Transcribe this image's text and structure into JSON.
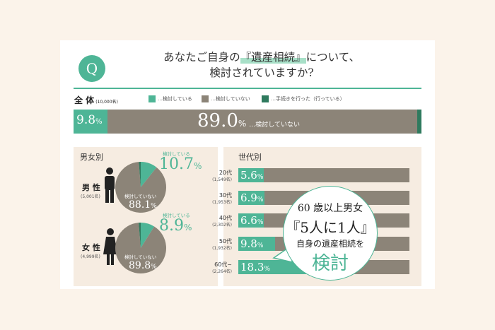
{
  "header": {
    "badge": "Q",
    "title_line1_pre": "あなたご自身の",
    "title_line1_hl": "『遺産相続』",
    "title_line1_post": "について、",
    "title_line2": "検討されていますか?"
  },
  "overall": {
    "label": "全 体",
    "count": "(10,000名)",
    "bar_label_1": "9.8",
    "bar_label_2": "89.0",
    "pct_unit": "%",
    "bar_note": "…検討していない"
  },
  "legend": [
    {
      "label": "…検討している",
      "color": "#4eb596"
    },
    {
      "label": "…検討していない",
      "color": "#8c8478"
    },
    {
      "label": "…手続きを行った（行っている）",
      "color": "#2f7a5e"
    }
  ],
  "gender": {
    "section_title": "男女別",
    "kentou_label": "検討している",
    "not_label": "検討していない",
    "items": [
      {
        "name": "男 性",
        "count": "(5,001名)",
        "kentou": "10.7",
        "not": "88.1",
        "pct": "%"
      },
      {
        "name": "女 性",
        "count": "(4,999名)",
        "kentou": "8.9",
        "not": "89.8",
        "pct": "%"
      }
    ]
  },
  "age": {
    "section_title": "世代別",
    "items": [
      {
        "label": "20代",
        "count": "(1,549名)",
        "value": "5.6",
        "pct": "%"
      },
      {
        "label": "30代",
        "count": "(1,953名)",
        "value": "6.9",
        "pct": "%"
      },
      {
        "label": "40代",
        "count": "(2,302名)",
        "value": "6.6",
        "pct": "%"
      },
      {
        "label": "50代",
        "count": "(1,932名)",
        "value": "9.8",
        "pct": "%"
      },
      {
        "label": "60代~",
        "count": "(2,264名)",
        "value": "18.3",
        "pct": "%"
      }
    ]
  },
  "callout": {
    "line1": "60 歳以上男女",
    "line2": "『5人に1人』",
    "line3": "自身の遺産相続を",
    "line4": "検討"
  },
  "colors": {
    "accent": "#4eb596",
    "grey": "#8c8478",
    "dark": "#2f7a5e"
  },
  "chart_data": [
    {
      "type": "bar",
      "categories": [
        "全体"
      ],
      "series": [
        {
          "name": "検討している",
          "values": [
            9.8
          ]
        },
        {
          "name": "検討していない",
          "values": [
            89.0
          ]
        },
        {
          "name": "手続きを行った（行っている）",
          "values": [
            1.2
          ]
        }
      ]
    },
    {
      "type": "pie",
      "categories": [
        "検討している",
        "検討していない",
        "手続きを行った（行っている）"
      ],
      "values": [
        10.7,
        88.1,
        1.2
      ],
      "series_label": "男性"
    },
    {
      "type": "pie",
      "categories": [
        "検討している",
        "検討していない",
        "手続きを行った（行っている）"
      ],
      "values": [
        8.9,
        89.8,
        1.3
      ],
      "series_label": "女性"
    },
    {
      "type": "bar",
      "categories": [
        "20代",
        "30代",
        "40代",
        "50代",
        "60代~"
      ],
      "values": [
        5.6,
        6.9,
        6.6,
        9.8,
        18.3
      ],
      "ylim": [
        0,
        100
      ]
    }
  ]
}
